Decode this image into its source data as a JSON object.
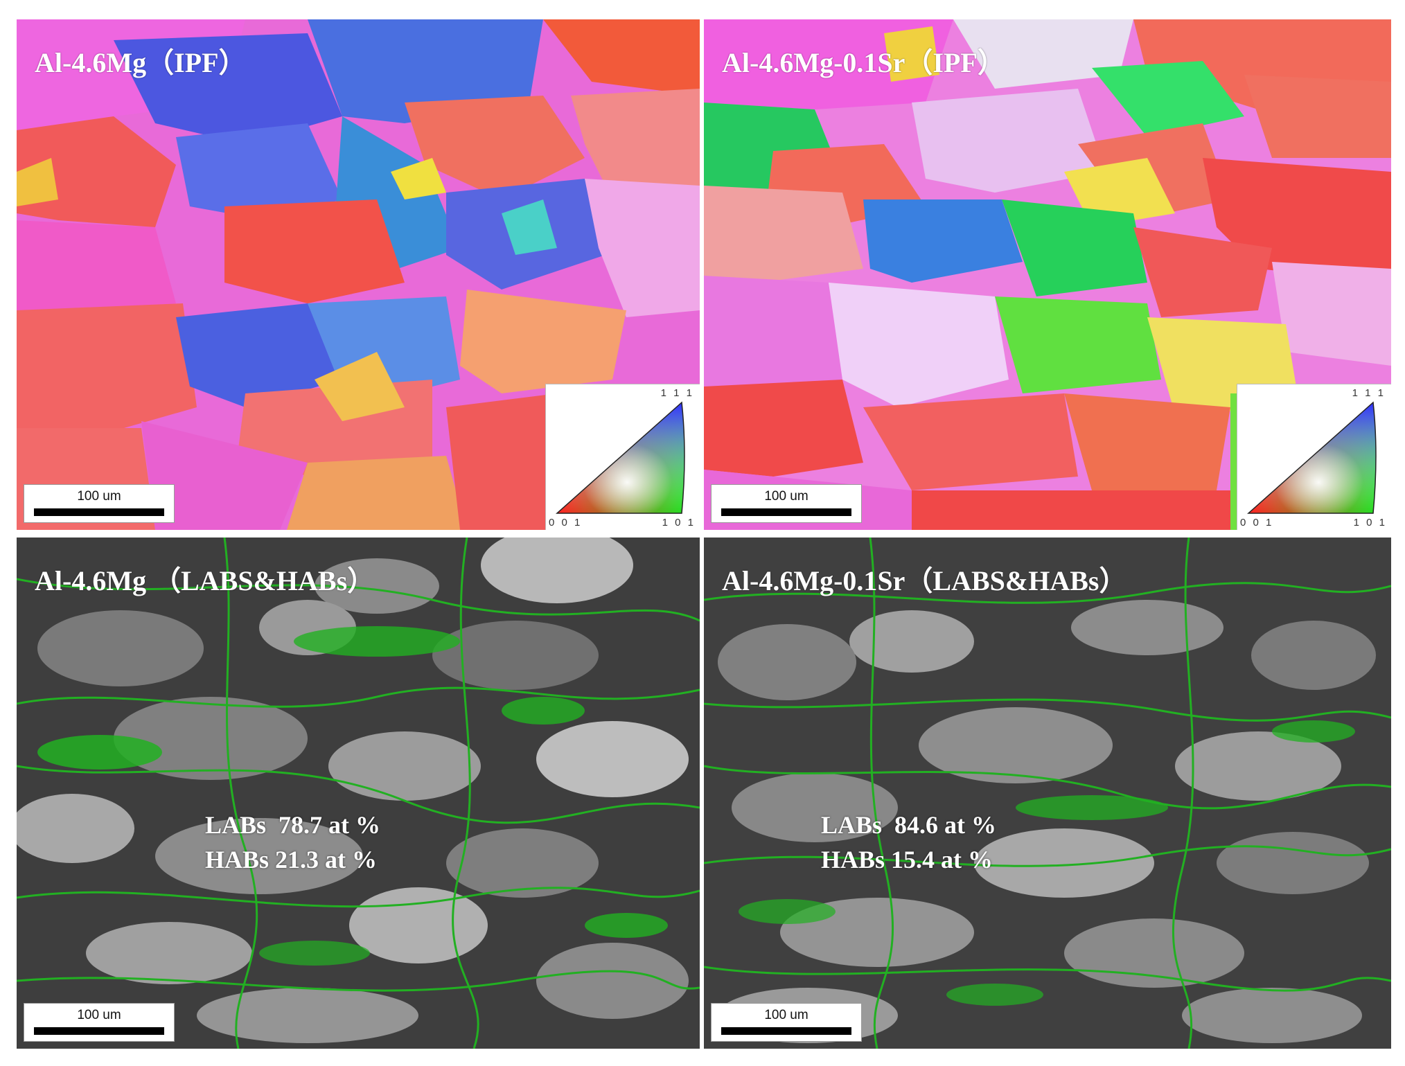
{
  "panels": {
    "top_left": {
      "label": "Al-4.6Mg（IPF）",
      "scale_bar": "100 um"
    },
    "top_right": {
      "label": "Al-4.6Mg-0.1Sr（IPF）",
      "scale_bar": "100 um"
    },
    "bottom_left": {
      "label": "Al-4.6Mg （LABS&HABs）",
      "scale_bar": "100 um",
      "stat_labs": "LABs  78.7 at %",
      "stat_habs": "HABs 21.3 at %"
    },
    "bottom_right": {
      "label": "Al-4.6Mg-0.1Sr（LABS&HABs）",
      "scale_bar": "100 um",
      "stat_labs": "LABs  84.6 at %",
      "stat_habs": "HABs 15.4 at %"
    }
  },
  "ipf_key": {
    "corner_111": "1 1 1",
    "corner_001": "0 0 1",
    "corner_101": "1 0 1"
  },
  "colors": {
    "habs_boundary": "#22b022",
    "labs_boundary": "#000000",
    "background": "#ffffff"
  }
}
